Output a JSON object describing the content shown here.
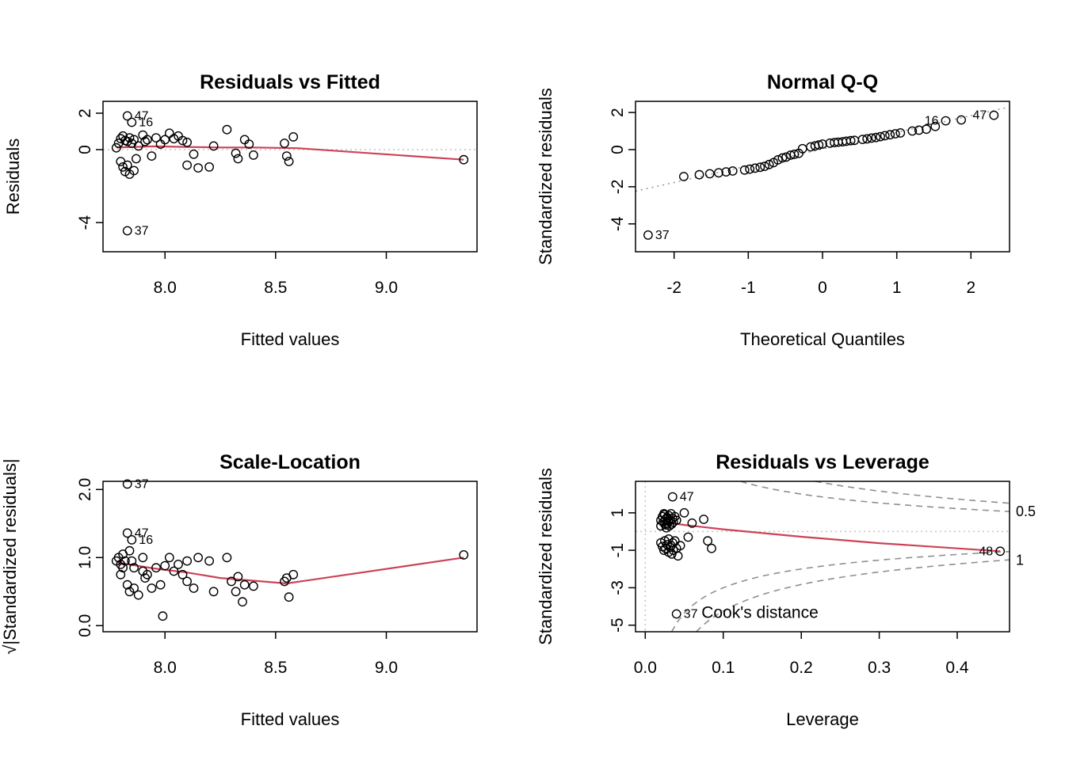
{
  "page": {
    "background": "#ffffff"
  },
  "colors": {
    "smooth_line": "#cc4257",
    "reference_line": "#c4c4c4",
    "qq_line": "#9a9a9a",
    "cook_contour": "#8f8f8f",
    "gray_label": "#9a9a9a",
    "point_stroke": "#000000",
    "axis": "#000000"
  },
  "chart_data": [
    {
      "id": "residuals-vs-fitted",
      "type": "scatter",
      "title": "Residuals vs Fitted",
      "xlabel": "Fitted values",
      "ylabel": "Residuals",
      "xlim": [
        7.72,
        9.41
      ],
      "ylim": [
        -5.6,
        2.65
      ],
      "xticks": [
        8.0,
        8.5,
        9.0
      ],
      "xtick_labels": [
        "8.0",
        "8.5",
        "9.0"
      ],
      "yticks": [
        2,
        0,
        -4
      ],
      "ytick_labels": [
        "2",
        "0",
        "-4"
      ],
      "hline": 0,
      "grid": false,
      "smooth": [
        [
          7.78,
          0.12
        ],
        [
          7.95,
          0.18
        ],
        [
          8.1,
          0.15
        ],
        [
          8.25,
          0.12
        ],
        [
          8.4,
          0.12
        ],
        [
          8.6,
          0.08
        ],
        [
          9.35,
          -0.55
        ]
      ],
      "points": [
        [
          7.78,
          0.1
        ],
        [
          7.79,
          0.35
        ],
        [
          7.8,
          0.6
        ],
        [
          7.81,
          0.75
        ],
        [
          7.82,
          0.5
        ],
        [
          7.83,
          0.45
        ],
        [
          7.84,
          0.65
        ],
        [
          7.85,
          0.35
        ],
        [
          7.86,
          0.55
        ],
        [
          7.8,
          -0.65
        ],
        [
          7.81,
          -0.95
        ],
        [
          7.82,
          -1.2
        ],
        [
          7.83,
          -0.85
        ],
        [
          7.84,
          -1.35
        ],
        [
          7.86,
          -1.15
        ],
        [
          7.87,
          -0.5
        ],
        [
          7.88,
          0.2
        ],
        [
          7.9,
          0.8
        ],
        [
          7.91,
          0.45
        ],
        [
          7.92,
          0.55
        ],
        [
          7.94,
          -0.35
        ],
        [
          7.96,
          0.65
        ],
        [
          7.98,
          0.3
        ],
        [
          8.0,
          0.55
        ],
        [
          8.02,
          0.9
        ],
        [
          8.04,
          0.6
        ],
        [
          8.06,
          0.75
        ],
        [
          8.08,
          0.5
        ],
        [
          8.1,
          0.4
        ],
        [
          8.1,
          -0.85
        ],
        [
          8.13,
          -0.25
        ],
        [
          8.15,
          -1.0
        ],
        [
          8.2,
          -0.95
        ],
        [
          8.22,
          0.2
        ],
        [
          8.28,
          1.1
        ],
        [
          8.32,
          -0.2
        ],
        [
          8.33,
          -0.5
        ],
        [
          8.36,
          0.55
        ],
        [
          8.38,
          0.3
        ],
        [
          8.4,
          -0.3
        ],
        [
          8.54,
          0.35
        ],
        [
          8.55,
          -0.35
        ],
        [
          8.56,
          -0.65
        ],
        [
          8.58,
          0.7
        ],
        [
          9.35,
          -0.55
        ]
      ],
      "labeled_points": [
        {
          "label": "47",
          "x": 7.83,
          "y": 1.85,
          "side": "right"
        },
        {
          "label": "16",
          "x": 7.85,
          "y": 1.5,
          "side": "right"
        },
        {
          "label": "37",
          "x": 7.83,
          "y": -4.45,
          "side": "right"
        }
      ]
    },
    {
      "id": "normal-qq",
      "type": "scatter",
      "title": "Normal Q-Q",
      "xlabel": "Theoretical Quantiles",
      "ylabel": "Standardized residuals",
      "xlim": [
        -2.52,
        2.52
      ],
      "ylim": [
        -5.5,
        2.6
      ],
      "xticks": [
        -2,
        -1,
        0,
        1,
        2
      ],
      "xtick_labels": [
        "-2",
        "-1",
        "0",
        "1",
        "2"
      ],
      "yticks": [
        2,
        0,
        -2,
        -4
      ],
      "ytick_labels": [
        "2",
        "0",
        "-2",
        "-4"
      ],
      "grid": false,
      "refline": {
        "intercept": 0.03,
        "slope": 0.9
      },
      "points": [
        [
          -1.87,
          -1.45
        ],
        [
          -1.66,
          -1.35
        ],
        [
          -1.52,
          -1.3
        ],
        [
          -1.4,
          -1.25
        ],
        [
          -1.3,
          -1.2
        ],
        [
          -1.21,
          -1.15
        ],
        [
          -1.05,
          -1.1
        ],
        [
          -0.98,
          -1.05
        ],
        [
          -0.91,
          -1.0
        ],
        [
          -0.84,
          -0.95
        ],
        [
          -0.78,
          -0.9
        ],
        [
          -0.72,
          -0.8
        ],
        [
          -0.66,
          -0.7
        ],
        [
          -0.6,
          -0.55
        ],
        [
          -0.54,
          -0.45
        ],
        [
          -0.49,
          -0.4
        ],
        [
          -0.43,
          -0.3
        ],
        [
          -0.38,
          -0.25
        ],
        [
          -0.32,
          -0.2
        ],
        [
          -0.27,
          0.05
        ],
        [
          -0.16,
          0.15
        ],
        [
          -0.1,
          0.2
        ],
        [
          -0.05,
          0.25
        ],
        [
          0.0,
          0.3
        ],
        [
          0.1,
          0.35
        ],
        [
          0.16,
          0.38
        ],
        [
          0.21,
          0.4
        ],
        [
          0.27,
          0.42
        ],
        [
          0.32,
          0.45
        ],
        [
          0.38,
          0.48
        ],
        [
          0.43,
          0.5
        ],
        [
          0.54,
          0.55
        ],
        [
          0.6,
          0.58
        ],
        [
          0.66,
          0.62
        ],
        [
          0.72,
          0.65
        ],
        [
          0.78,
          0.7
        ],
        [
          0.84,
          0.75
        ],
        [
          0.91,
          0.8
        ],
        [
          0.98,
          0.85
        ],
        [
          1.05,
          0.9
        ],
        [
          1.21,
          1.0
        ],
        [
          1.3,
          1.05
        ],
        [
          1.4,
          1.1
        ],
        [
          1.52,
          1.25
        ],
        [
          1.87,
          1.6
        ]
      ],
      "labeled_points": [
        {
          "label": "16",
          "x": 1.66,
          "y": 1.55,
          "side": "left"
        },
        {
          "label": "47",
          "x": 2.31,
          "y": 1.85,
          "side": "left"
        },
        {
          "label": "37",
          "x": -2.35,
          "y": -4.6,
          "side": "right"
        }
      ]
    },
    {
      "id": "scale-location",
      "type": "scatter",
      "title": "Scale-Location",
      "xlabel": "Fitted values",
      "ylabel": "√|Standardized residuals|",
      "xlim": [
        7.72,
        9.41
      ],
      "ylim": [
        -0.09,
        2.12
      ],
      "xticks": [
        8.0,
        8.5,
        9.0
      ],
      "xtick_labels": [
        "8.0",
        "8.5",
        "9.0"
      ],
      "yticks": [
        0,
        1,
        2
      ],
      "ytick_labels": [
        "0.0",
        "1.0",
        "2.0"
      ],
      "grid": false,
      "smooth": [
        [
          7.78,
          0.93
        ],
        [
          7.95,
          0.84
        ],
        [
          8.1,
          0.78
        ],
        [
          8.25,
          0.7
        ],
        [
          8.4,
          0.66
        ],
        [
          8.55,
          0.62
        ],
        [
          9.35,
          1.0
        ]
      ],
      "points": [
        [
          7.78,
          0.95
        ],
        [
          7.79,
          1.0
        ],
        [
          7.8,
          0.9
        ],
        [
          7.8,
          0.75
        ],
        [
          7.81,
          1.05
        ],
        [
          7.81,
          0.85
        ],
        [
          7.82,
          0.95
        ],
        [
          7.83,
          0.6
        ],
        [
          7.84,
          1.1
        ],
        [
          7.84,
          0.5
        ],
        [
          7.85,
          0.95
        ],
        [
          7.86,
          0.85
        ],
        [
          7.86,
          0.55
        ],
        [
          7.88,
          0.45
        ],
        [
          7.9,
          1.0
        ],
        [
          7.9,
          0.8
        ],
        [
          7.91,
          0.7
        ],
        [
          7.92,
          0.75
        ],
        [
          7.94,
          0.55
        ],
        [
          7.96,
          0.85
        ],
        [
          7.98,
          0.6
        ],
        [
          7.99,
          0.14
        ],
        [
          8.0,
          0.88
        ],
        [
          8.02,
          1.0
        ],
        [
          8.04,
          0.8
        ],
        [
          8.06,
          0.9
        ],
        [
          8.08,
          0.75
        ],
        [
          8.1,
          0.65
        ],
        [
          8.1,
          0.95
        ],
        [
          8.13,
          0.55
        ],
        [
          8.15,
          1.0
        ],
        [
          8.2,
          0.95
        ],
        [
          8.22,
          0.5
        ],
        [
          8.28,
          1.0
        ],
        [
          8.3,
          0.65
        ],
        [
          8.32,
          0.5
        ],
        [
          8.33,
          0.72
        ],
        [
          8.35,
          0.35
        ],
        [
          8.36,
          0.6
        ],
        [
          8.4,
          0.58
        ],
        [
          8.54,
          0.65
        ],
        [
          8.55,
          0.7
        ],
        [
          8.56,
          0.42
        ],
        [
          8.58,
          0.75
        ],
        [
          9.35,
          1.04
        ]
      ],
      "labeled_points": [
        {
          "label": "37",
          "x": 7.83,
          "y": 2.08,
          "side": "right"
        },
        {
          "label": "47",
          "x": 7.83,
          "y": 1.36,
          "side": "right"
        },
        {
          "label": "16",
          "x": 7.85,
          "y": 1.26,
          "side": "right"
        }
      ]
    },
    {
      "id": "residuals-vs-leverage",
      "type": "scatter",
      "title": "Residuals vs Leverage",
      "xlabel": "Leverage",
      "ylabel": "Standardized residuals",
      "xlim": [
        -0.0125,
        0.467
      ],
      "ylim": [
        -5.35,
        2.68
      ],
      "xticks": [
        0,
        0.1,
        0.2,
        0.3,
        0.4
      ],
      "xtick_labels": [
        "0.0",
        "0.1",
        "0.2",
        "0.3",
        "0.4"
      ],
      "yticks": [
        1,
        -1,
        -3,
        -5
      ],
      "ytick_labels": [
        "1",
        "-1",
        "-3",
        "-5"
      ],
      "hline": 0,
      "vline": 0,
      "grid": false,
      "cook": {
        "levels": [
          0.5,
          1
        ],
        "p": 2,
        "labels": [
          {
            "text": "0.5",
            "y": 1.07
          },
          {
            "text": "1",
            "y": -1.52
          }
        ]
      },
      "annotation": {
        "text": "Cook's distance",
        "x": 0.072,
        "y": -4.62
      },
      "smooth": [
        [
          0.018,
          0.55
        ],
        [
          0.05,
          0.35
        ],
        [
          0.1,
          0.12
        ],
        [
          0.2,
          -0.28
        ],
        [
          0.3,
          -0.62
        ],
        [
          0.455,
          -1.05
        ]
      ],
      "points": [
        [
          0.02,
          0.6
        ],
        [
          0.02,
          0.3
        ],
        [
          0.022,
          0.8
        ],
        [
          0.023,
          0.5
        ],
        [
          0.024,
          0.95
        ],
        [
          0.025,
          0.9
        ],
        [
          0.025,
          0.4
        ],
        [
          0.026,
          0.65
        ],
        [
          0.027,
          0.2
        ],
        [
          0.027,
          0.35
        ],
        [
          0.028,
          0.75
        ],
        [
          0.028,
          0.45
        ],
        [
          0.03,
          0.55
        ],
        [
          0.03,
          0.85
        ],
        [
          0.031,
          0.3
        ],
        [
          0.032,
          0.6
        ],
        [
          0.033,
          0.95
        ],
        [
          0.034,
          0.4
        ],
        [
          0.035,
          0.7
        ],
        [
          0.036,
          0.5
        ],
        [
          0.038,
          0.8
        ],
        [
          0.04,
          0.6
        ],
        [
          0.02,
          -0.6
        ],
        [
          0.022,
          -0.8
        ],
        [
          0.024,
          -1.0
        ],
        [
          0.025,
          -0.5
        ],
        [
          0.026,
          -0.9
        ],
        [
          0.028,
          -0.7
        ],
        [
          0.03,
          -1.1
        ],
        [
          0.03,
          -0.4
        ],
        [
          0.032,
          -0.85
        ],
        [
          0.033,
          -0.75
        ],
        [
          0.034,
          -1.2
        ],
        [
          0.035,
          -0.6
        ],
        [
          0.036,
          -1.0
        ],
        [
          0.038,
          -0.5
        ],
        [
          0.04,
          -0.9
        ],
        [
          0.042,
          -1.3
        ],
        [
          0.045,
          -0.75
        ],
        [
          0.05,
          1.0
        ],
        [
          0.055,
          -0.3
        ],
        [
          0.06,
          0.45
        ],
        [
          0.075,
          0.65
        ],
        [
          0.08,
          -0.5
        ],
        [
          0.085,
          -0.9
        ]
      ],
      "labeled_points": [
        {
          "label": "47",
          "x": 0.035,
          "y": 1.85,
          "side": "right"
        },
        {
          "label": "37",
          "x": 0.04,
          "y": -4.4,
          "side": "right"
        },
        {
          "label": "48",
          "x": 0.455,
          "y": -1.05,
          "side": "left"
        }
      ]
    }
  ]
}
